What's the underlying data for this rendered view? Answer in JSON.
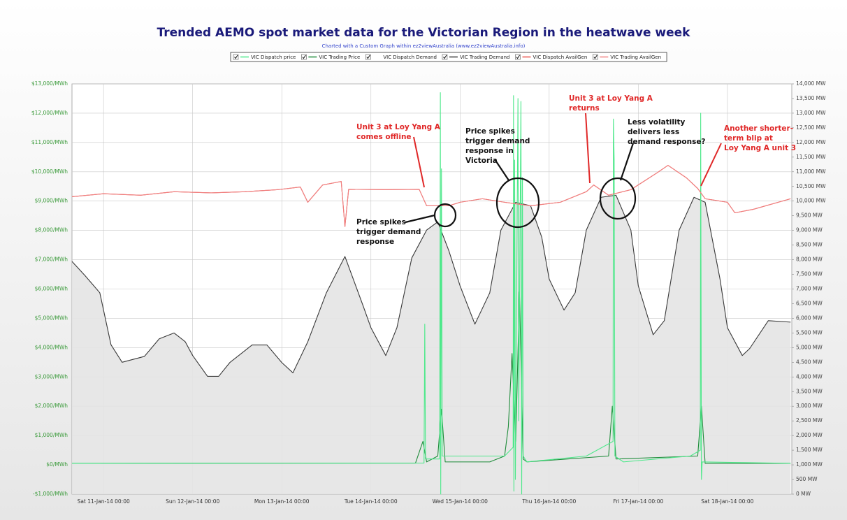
{
  "chart_data": {
    "type": "line",
    "title": "Trended AEMO spot market data for the Victorian Region in the heatwave week",
    "subtitle": "Charted with a Custom Graph within ez2viewAustralia (www.ez2viewAustralia.info)",
    "grid": true,
    "xlim": [
      "2014-01-10T15:30",
      "2014-01-18T17:20"
    ],
    "xticks": [
      {
        "value": "2014-01-11T00:00",
        "label": "Sat 11-Jan-14 00:00"
      },
      {
        "value": "2014-01-12T00:00",
        "label": "Sun 12-Jan-14 00:00"
      },
      {
        "value": "2014-01-13T00:00",
        "label": "Mon 13-Jan-14 00:00"
      },
      {
        "value": "2014-01-14T00:00",
        "label": "Tue 14-Jan-14 00:00"
      },
      {
        "value": "2014-01-15T00:00",
        "label": "Wed 15-Jan-14 00:00"
      },
      {
        "value": "2014-01-16T00:00",
        "label": "Thu 16-Jan-14 00:00"
      },
      {
        "value": "2014-01-17T00:00",
        "label": "Fri 17-Jan-14 00:00"
      },
      {
        "value": "2014-01-18T00:00",
        "label": "Sat 18-Jan-14 00:00"
      }
    ],
    "ylim": [
      -1000,
      13000
    ],
    "yticks": [
      {
        "value": -1000,
        "label": "-$1,000/MWh"
      },
      {
        "value": 0,
        "label": "$0/MWh"
      },
      {
        "value": 1000,
        "label": "$1,000/MWh"
      },
      {
        "value": 2000,
        "label": "$2,000/MWh"
      },
      {
        "value": 3000,
        "label": "$3,000/MWh"
      },
      {
        "value": 4000,
        "label": "$4,000/MWh"
      },
      {
        "value": 5000,
        "label": "$5,000/MWh"
      },
      {
        "value": 6000,
        "label": "$6,000/MWh"
      },
      {
        "value": 7000,
        "label": "$7,000/MWh"
      },
      {
        "value": 8000,
        "label": "$8,000/MWh"
      },
      {
        "value": 9000,
        "label": "$9,000/MWh"
      },
      {
        "value": 10000,
        "label": "$10,000/MWh"
      },
      {
        "value": 11000,
        "label": "$11,000/MWh"
      },
      {
        "value": 12000,
        "label": "$12,000/MWh"
      },
      {
        "value": 13000,
        "label": "$13,000/MWh"
      }
    ],
    "y2lim": [
      0,
      14000
    ],
    "y2ticks": [
      {
        "value": 0,
        "label": "0 MW"
      },
      {
        "value": 500,
        "label": "500 MW"
      },
      {
        "value": 1000,
        "label": "1,000 MW"
      },
      {
        "value": 1500,
        "label": "1,500 MW"
      },
      {
        "value": 2000,
        "label": "2,000 MW"
      },
      {
        "value": 2500,
        "label": "2,500 MW"
      },
      {
        "value": 3000,
        "label": "3,000 MW"
      },
      {
        "value": 3500,
        "label": "3,500 MW"
      },
      {
        "value": 4000,
        "label": "4,000 MW"
      },
      {
        "value": 4500,
        "label": "4,500 MW"
      },
      {
        "value": 5000,
        "label": "5,000 MW"
      },
      {
        "value": 5500,
        "label": "5,500 MW"
      },
      {
        "value": 6000,
        "label": "6,000 MW"
      },
      {
        "value": 6500,
        "label": "6,500 MW"
      },
      {
        "value": 7000,
        "label": "7,000 MW"
      },
      {
        "value": 7500,
        "label": "7,500 MW"
      },
      {
        "value": 8000,
        "label": "8,000 MW"
      },
      {
        "value": 8500,
        "label": "8,500 MW"
      },
      {
        "value": 9000,
        "label": "9,000 MW"
      },
      {
        "value": 9500,
        "label": "9,500 MW"
      },
      {
        "value": 10000,
        "label": "10,000 MW"
      },
      {
        "value": 10500,
        "label": "10,500 MW"
      },
      {
        "value": 11000,
        "label": "11,000 MW"
      },
      {
        "value": 11500,
        "label": "11,500 MW"
      },
      {
        "value": 12000,
        "label": "12,000 MW"
      },
      {
        "value": 12500,
        "label": "12,500 MW"
      },
      {
        "value": 13000,
        "label": "13,000 MW"
      },
      {
        "value": 13500,
        "label": "13,500 MW"
      },
      {
        "value": 14000,
        "label": "14,000 MW"
      }
    ],
    "series": [
      {
        "name": "VIC Dispatch Demand",
        "color": "#8c8c8c",
        "fill": true,
        "axis": "y2",
        "x": [
          "2014-01-10T15:30",
          "2014-01-10T19:00",
          "2014-01-10T23:00",
          "2014-01-11T02:00",
          "2014-01-11T05:00",
          "2014-01-11T11:00",
          "2014-01-11T15:00",
          "2014-01-11T19:00",
          "2014-01-11T22:00",
          "2014-01-12T00:00",
          "2014-01-12T04:00",
          "2014-01-12T07:00",
          "2014-01-12T10:00",
          "2014-01-12T16:00",
          "2014-01-12T20:00",
          "2014-01-13T00:00",
          "2014-01-13T03:00",
          "2014-01-13T07:00",
          "2014-01-13T12:00",
          "2014-01-13T17:00",
          "2014-01-13T22:00",
          "2014-01-14T00:00",
          "2014-01-14T04:00",
          "2014-01-14T07:00",
          "2014-01-14T11:00",
          "2014-01-14T15:00",
          "2014-01-14T18:00",
          "2014-01-14T21:00",
          "2014-01-15T00:00",
          "2014-01-15T04:00",
          "2014-01-15T08:00",
          "2014-01-15T11:00",
          "2014-01-15T15:00",
          "2014-01-15T19:00",
          "2014-01-15T22:00",
          "2014-01-16T00:00",
          "2014-01-16T04:00",
          "2014-01-16T07:00",
          "2014-01-16T10:00",
          "2014-01-16T14:00",
          "2014-01-16T18:00",
          "2014-01-16T22:00",
          "2014-01-17T00:00",
          "2014-01-17T04:00",
          "2014-01-17T07:00",
          "2014-01-17T11:00",
          "2014-01-17T15:00",
          "2014-01-17T18:00",
          "2014-01-17T22:00",
          "2014-01-18T00:00",
          "2014-01-18T04:00",
          "2014-01-18T06:00",
          "2014-01-18T11:00",
          "2014-01-18T17:00"
        ],
        "values": [
          7940,
          7460,
          6870,
          5100,
          4500,
          4700,
          5300,
          5500,
          5200,
          4730,
          4020,
          4020,
          4490,
          5090,
          5090,
          4490,
          4140,
          5200,
          6870,
          8110,
          6390,
          5680,
          4730,
          5680,
          8060,
          9010,
          9290,
          8300,
          7110,
          5800,
          6870,
          9010,
          9960,
          9840,
          8770,
          7340,
          6280,
          6870,
          9010,
          10130,
          10200,
          9010,
          7110,
          5440,
          5920,
          9010,
          10130,
          9960,
          7340,
          5680,
          4730,
          4970,
          5920,
          5870
        ]
      },
      {
        "name": "VIC Trading Demand",
        "color": "#3a3a3a",
        "axis": "y2",
        "x": [
          "2014-01-10T15:30",
          "2014-01-10T19:00",
          "2014-01-10T23:00",
          "2014-01-11T02:00",
          "2014-01-11T05:00",
          "2014-01-11T11:00",
          "2014-01-11T15:00",
          "2014-01-11T19:00",
          "2014-01-11T22:00",
          "2014-01-12T00:00",
          "2014-01-12T04:00",
          "2014-01-12T07:00",
          "2014-01-12T10:00",
          "2014-01-12T16:00",
          "2014-01-12T20:00",
          "2014-01-13T00:00",
          "2014-01-13T03:00",
          "2014-01-13T07:00",
          "2014-01-13T12:00",
          "2014-01-13T17:00",
          "2014-01-13T22:00",
          "2014-01-14T00:00",
          "2014-01-14T04:00",
          "2014-01-14T07:00",
          "2014-01-14T11:00",
          "2014-01-14T15:00",
          "2014-01-14T18:00",
          "2014-01-14T21:00",
          "2014-01-15T00:00",
          "2014-01-15T04:00",
          "2014-01-15T08:00",
          "2014-01-15T11:00",
          "2014-01-15T15:00",
          "2014-01-15T19:00",
          "2014-01-15T22:00",
          "2014-01-16T00:00",
          "2014-01-16T04:00",
          "2014-01-16T07:00",
          "2014-01-16T10:00",
          "2014-01-16T14:00",
          "2014-01-16T18:00",
          "2014-01-16T22:00",
          "2014-01-17T00:00",
          "2014-01-17T04:00",
          "2014-01-17T07:00",
          "2014-01-17T11:00",
          "2014-01-17T15:00",
          "2014-01-17T18:00",
          "2014-01-17T22:00",
          "2014-01-18T00:00",
          "2014-01-18T04:00",
          "2014-01-18T06:00",
          "2014-01-18T11:00",
          "2014-01-18T17:00"
        ],
        "values": [
          7940,
          7460,
          6870,
          5100,
          4500,
          4700,
          5300,
          5500,
          5200,
          4730,
          4020,
          4020,
          4490,
          5090,
          5090,
          4490,
          4140,
          5200,
          6870,
          8110,
          6390,
          5680,
          4730,
          5680,
          8060,
          9010,
          9290,
          8300,
          7110,
          5800,
          6870,
          9010,
          9960,
          9840,
          8770,
          7340,
          6280,
          6870,
          9010,
          10130,
          10200,
          9010,
          7110,
          5440,
          5920,
          9010,
          10130,
          9960,
          7340,
          5680,
          4730,
          4970,
          5920,
          5870
        ]
      },
      {
        "name": "VIC Trading Price",
        "color": "#1e8c3a",
        "axis": "y",
        "x": [
          "2014-01-10T15:30",
          "2014-01-14T12:00",
          "2014-01-14T14:00",
          "2014-01-14T15:00",
          "2014-01-14T18:00",
          "2014-01-14T19:00",
          "2014-01-14T20:00",
          "2014-01-15T08:00",
          "2014-01-15T12:00",
          "2014-01-15T13:00",
          "2014-01-15T14:00",
          "2014-01-15T15:00",
          "2014-01-15T16:00",
          "2014-01-15T17:00",
          "2014-01-15T18:00",
          "2014-01-16T16:00",
          "2014-01-16T17:00",
          "2014-01-16T18:00",
          "2014-01-17T16:00",
          "2014-01-17T17:00",
          "2014-01-17T18:00",
          "2014-01-18T17:00"
        ],
        "values": [
          50,
          60,
          800,
          100,
          300,
          1900,
          100,
          100,
          300,
          1300,
          3800,
          800,
          5900,
          200,
          100,
          300,
          2000,
          200,
          300,
          2000,
          50,
          50
        ]
      },
      {
        "name": "VIC Dispatch price",
        "color": "#4de88a",
        "axis": "y",
        "x": [
          "2014-01-10T15:30",
          "2014-01-14T14:18",
          "2014-01-14T14:30",
          "2014-01-14T14:42",
          "2014-01-14T18:30",
          "2014-01-14T18:42",
          "2014-01-14T18:48",
          "2014-01-14T19:00",
          "2014-01-14T19:12",
          "2014-01-15T12:00",
          "2014-01-15T14:18",
          "2014-01-15T14:24",
          "2014-01-15T14:30",
          "2014-01-15T14:42",
          "2014-01-15T14:54",
          "2014-01-15T15:36",
          "2014-01-15T15:48",
          "2014-01-15T16:24",
          "2014-01-15T16:36",
          "2014-01-15T16:48",
          "2014-01-15T17:00",
          "2014-01-15T18:00",
          "2014-01-16T10:00",
          "2014-01-16T17:12",
          "2014-01-16T17:18",
          "2014-01-16T17:30",
          "2014-01-16T17:42",
          "2014-01-16T20:00",
          "2014-01-17T14:00",
          "2014-01-17T16:42",
          "2014-01-17T16:48",
          "2014-01-17T17:00",
          "2014-01-17T17:12",
          "2014-01-18T17:00"
        ],
        "values": [
          50,
          60,
          4800,
          200,
          200,
          12700,
          -1000,
          10100,
          300,
          300,
          600,
          12600,
          -900,
          10400,
          -500,
          12500,
          1500,
          12400,
          -1000,
          9800,
          300,
          100,
          300,
          800,
          11800,
          10400,
          300,
          100,
          300,
          500,
          12000,
          -500,
          100,
          50
        ]
      },
      {
        "name": "VIC Dispatch AvailGen",
        "color": "#e8504a",
        "axis": "y2",
        "x": [
          "2014-01-10T15:30",
          "2014-01-11T00:00",
          "2014-01-11T10:00",
          "2014-01-11T19:00",
          "2014-01-12T05:00",
          "2014-01-12T14:00",
          "2014-01-12T23:00",
          "2014-01-13T05:00",
          "2014-01-13T07:00",
          "2014-01-13T11:00",
          "2014-01-13T16:00",
          "2014-01-13T17:00",
          "2014-01-13T18:00",
          "2014-01-14T04:00",
          "2014-01-14T13:00",
          "2014-01-14T15:00",
          "2014-01-14T21:00",
          "2014-01-15T00:00",
          "2014-01-15T06:00",
          "2014-01-15T12:00",
          "2014-01-15T19:00",
          "2014-01-16T03:00",
          "2014-01-16T10:00",
          "2014-01-16T12:00",
          "2014-01-16T16:00",
          "2014-01-16T22:00",
          "2014-01-17T05:00",
          "2014-01-17T08:00",
          "2014-01-17T13:00",
          "2014-01-17T16:00",
          "2014-01-17T18:00",
          "2014-01-18T00:00",
          "2014-01-18T02:00",
          "2014-01-18T07:00",
          "2014-01-18T17:00"
        ],
        "values": [
          10150,
          10250,
          10200,
          10320,
          10280,
          10320,
          10390,
          10480,
          9960,
          10550,
          10670,
          9130,
          10400,
          10390,
          10400,
          9840,
          9840,
          9960,
          10080,
          9960,
          9840,
          9960,
          10320,
          10550,
          10200,
          10390,
          10960,
          11220,
          10790,
          10430,
          10080,
          9960,
          9600,
          9720,
          10080
        ]
      },
      {
        "name": "VIC Trading AvailGen",
        "color": "#f08080",
        "axis": "y2",
        "x": [
          "2014-01-10T15:30",
          "2014-01-11T00:00",
          "2014-01-11T10:00",
          "2014-01-11T19:00",
          "2014-01-12T05:00",
          "2014-01-12T14:00",
          "2014-01-12T23:00",
          "2014-01-13T05:00",
          "2014-01-13T07:00",
          "2014-01-13T11:00",
          "2014-01-13T16:00",
          "2014-01-13T17:00",
          "2014-01-13T18:00",
          "2014-01-14T04:00",
          "2014-01-14T13:00",
          "2014-01-14T15:00",
          "2014-01-14T21:00",
          "2014-01-15T00:00",
          "2014-01-15T06:00",
          "2014-01-15T12:00",
          "2014-01-15T19:00",
          "2014-01-16T03:00",
          "2014-01-16T10:00",
          "2014-01-16T12:00",
          "2014-01-16T16:00",
          "2014-01-16T22:00",
          "2014-01-17T05:00",
          "2014-01-17T08:00",
          "2014-01-17T13:00",
          "2014-01-17T16:00",
          "2014-01-17T18:00",
          "2014-01-18T00:00",
          "2014-01-18T02:00",
          "2014-01-18T07:00",
          "2014-01-18T17:00"
        ],
        "values": [
          10150,
          10250,
          10200,
          10320,
          10280,
          10320,
          10390,
          10480,
          9960,
          10550,
          10670,
          9130,
          10400,
          10390,
          10400,
          9840,
          9840,
          9960,
          10080,
          9960,
          9840,
          9960,
          10320,
          10550,
          10200,
          10390,
          10960,
          11220,
          10790,
          10430,
          10080,
          9960,
          9600,
          9720,
          10080
        ]
      }
    ],
    "legend_order": [
      "VIC Dispatch price",
      "VIC Trading Price",
      "VIC Dispatch Demand",
      "VIC Trading Demand",
      "VIC Dispatch AvailGen",
      "VIC Trading AvailGen"
    ],
    "annotations": [
      {
        "lines": [
          "Unit 3 at Loy Yang A",
          "comes offline"
        ],
        "color": "#e02828"
      },
      {
        "lines": [
          "Price spikes",
          "trigger demand",
          "response"
        ],
        "color": "#111111"
      },
      {
        "lines": [
          "Price spikes",
          "trigger demand",
          "response in",
          "Victoria"
        ],
        "color": "#111111"
      },
      {
        "lines": [
          "Unit 3 at Loy Yang A",
          "returns"
        ],
        "color": "#e02828"
      },
      {
        "lines": [
          "Less volatility",
          "delivers less",
          "demand response?"
        ],
        "color": "#111111"
      },
      {
        "lines": [
          "Another shorter-",
          "term blip at",
          "Loy Yang A unit 3"
        ],
        "color": "#e02828"
      }
    ]
  }
}
